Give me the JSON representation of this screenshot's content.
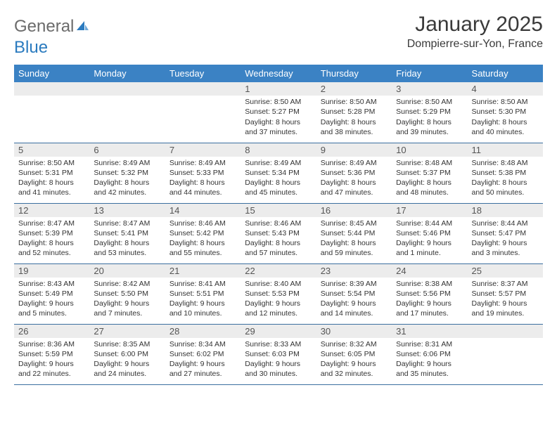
{
  "brand": {
    "part1": "General",
    "part2": "Blue"
  },
  "title": "January 2025",
  "location": "Dompierre-sur-Yon, France",
  "colors": {
    "header_bg": "#3b82c4",
    "header_text": "#ffffff",
    "daynum_bg": "#ececec",
    "row_border": "#3b6fa0",
    "logo_gray": "#6b6b6b",
    "logo_blue": "#2b7bbf"
  },
  "weekdays": [
    "Sunday",
    "Monday",
    "Tuesday",
    "Wednesday",
    "Thursday",
    "Friday",
    "Saturday"
  ],
  "grid": {
    "start_weekday_index": 3,
    "days_in_month": 31
  },
  "days": {
    "1": {
      "sunrise": "8:50 AM",
      "sunset": "5:27 PM",
      "daylight": "8 hours and 37 minutes."
    },
    "2": {
      "sunrise": "8:50 AM",
      "sunset": "5:28 PM",
      "daylight": "8 hours and 38 minutes."
    },
    "3": {
      "sunrise": "8:50 AM",
      "sunset": "5:29 PM",
      "daylight": "8 hours and 39 minutes."
    },
    "4": {
      "sunrise": "8:50 AM",
      "sunset": "5:30 PM",
      "daylight": "8 hours and 40 minutes."
    },
    "5": {
      "sunrise": "8:50 AM",
      "sunset": "5:31 PM",
      "daylight": "8 hours and 41 minutes."
    },
    "6": {
      "sunrise": "8:49 AM",
      "sunset": "5:32 PM",
      "daylight": "8 hours and 42 minutes."
    },
    "7": {
      "sunrise": "8:49 AM",
      "sunset": "5:33 PM",
      "daylight": "8 hours and 44 minutes."
    },
    "8": {
      "sunrise": "8:49 AM",
      "sunset": "5:34 PM",
      "daylight": "8 hours and 45 minutes."
    },
    "9": {
      "sunrise": "8:49 AM",
      "sunset": "5:36 PM",
      "daylight": "8 hours and 47 minutes."
    },
    "10": {
      "sunrise": "8:48 AM",
      "sunset": "5:37 PM",
      "daylight": "8 hours and 48 minutes."
    },
    "11": {
      "sunrise": "8:48 AM",
      "sunset": "5:38 PM",
      "daylight": "8 hours and 50 minutes."
    },
    "12": {
      "sunrise": "8:47 AM",
      "sunset": "5:39 PM",
      "daylight": "8 hours and 52 minutes."
    },
    "13": {
      "sunrise": "8:47 AM",
      "sunset": "5:41 PM",
      "daylight": "8 hours and 53 minutes."
    },
    "14": {
      "sunrise": "8:46 AM",
      "sunset": "5:42 PM",
      "daylight": "8 hours and 55 minutes."
    },
    "15": {
      "sunrise": "8:46 AM",
      "sunset": "5:43 PM",
      "daylight": "8 hours and 57 minutes."
    },
    "16": {
      "sunrise": "8:45 AM",
      "sunset": "5:44 PM",
      "daylight": "8 hours and 59 minutes."
    },
    "17": {
      "sunrise": "8:44 AM",
      "sunset": "5:46 PM",
      "daylight": "9 hours and 1 minute."
    },
    "18": {
      "sunrise": "8:44 AM",
      "sunset": "5:47 PM",
      "daylight": "9 hours and 3 minutes."
    },
    "19": {
      "sunrise": "8:43 AM",
      "sunset": "5:49 PM",
      "daylight": "9 hours and 5 minutes."
    },
    "20": {
      "sunrise": "8:42 AM",
      "sunset": "5:50 PM",
      "daylight": "9 hours and 7 minutes."
    },
    "21": {
      "sunrise": "8:41 AM",
      "sunset": "5:51 PM",
      "daylight": "9 hours and 10 minutes."
    },
    "22": {
      "sunrise": "8:40 AM",
      "sunset": "5:53 PM",
      "daylight": "9 hours and 12 minutes."
    },
    "23": {
      "sunrise": "8:39 AM",
      "sunset": "5:54 PM",
      "daylight": "9 hours and 14 minutes."
    },
    "24": {
      "sunrise": "8:38 AM",
      "sunset": "5:56 PM",
      "daylight": "9 hours and 17 minutes."
    },
    "25": {
      "sunrise": "8:37 AM",
      "sunset": "5:57 PM",
      "daylight": "9 hours and 19 minutes."
    },
    "26": {
      "sunrise": "8:36 AM",
      "sunset": "5:59 PM",
      "daylight": "9 hours and 22 minutes."
    },
    "27": {
      "sunrise": "8:35 AM",
      "sunset": "6:00 PM",
      "daylight": "9 hours and 24 minutes."
    },
    "28": {
      "sunrise": "8:34 AM",
      "sunset": "6:02 PM",
      "daylight": "9 hours and 27 minutes."
    },
    "29": {
      "sunrise": "8:33 AM",
      "sunset": "6:03 PM",
      "daylight": "9 hours and 30 minutes."
    },
    "30": {
      "sunrise": "8:32 AM",
      "sunset": "6:05 PM",
      "daylight": "9 hours and 32 minutes."
    },
    "31": {
      "sunrise": "8:31 AM",
      "sunset": "6:06 PM",
      "daylight": "9 hours and 35 minutes."
    }
  },
  "labels": {
    "sunrise": "Sunrise:",
    "sunset": "Sunset:",
    "daylight": "Daylight:"
  }
}
